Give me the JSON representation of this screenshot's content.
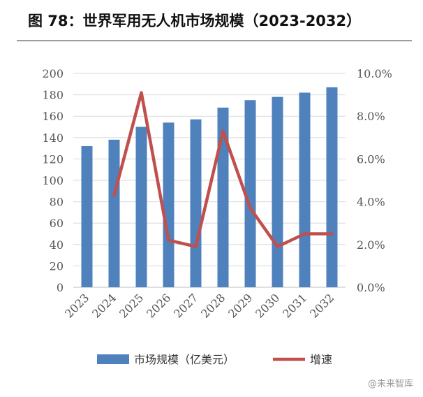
{
  "title": "图 78：世界军用无人机市场规模（2023-2032）",
  "watermark": "@未来智库",
  "chart_data": {
    "type": "bar+line",
    "categories": [
      "2023",
      "2024",
      "2025",
      "2026",
      "2027",
      "2028",
      "2029",
      "2030",
      "2031",
      "2032"
    ],
    "series": [
      {
        "name": "市场规模（亿美元）",
        "type": "bar",
        "axis": "left",
        "color": "#4f81bd",
        "values": [
          132,
          138,
          150,
          154,
          157,
          168,
          175,
          178,
          182,
          187
        ]
      },
      {
        "name": "增速",
        "type": "line",
        "axis": "right",
        "color": "#c0504d",
        "values": [
          null,
          4.3,
          9.1,
          2.2,
          1.9,
          7.3,
          3.7,
          1.9,
          2.5,
          2.5
        ]
      }
    ],
    "y_left": {
      "min": 0,
      "max": 200,
      "step": 20,
      "ticks": [
        "0",
        "20",
        "40",
        "60",
        "80",
        "100",
        "120",
        "140",
        "160",
        "180",
        "200"
      ]
    },
    "y_right": {
      "min": 0,
      "max": 10,
      "step": 2,
      "ticks": [
        "0.0%",
        "2.0%",
        "4.0%",
        "6.0%",
        "8.0%",
        "10.0%"
      ]
    },
    "grid": true,
    "legend_position": "bottom"
  }
}
